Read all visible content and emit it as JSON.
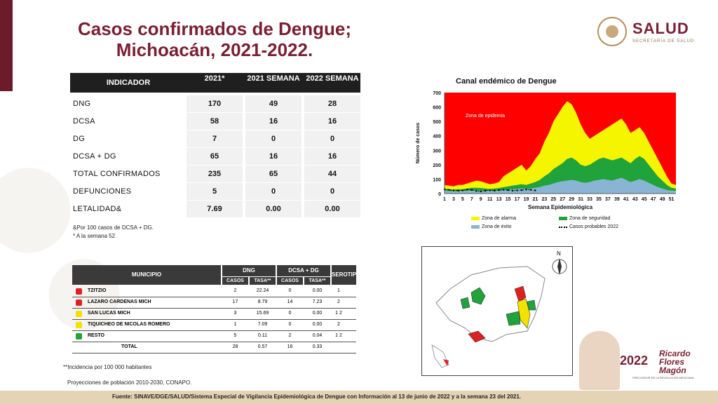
{
  "title": {
    "line1": "Casos confirmados de Dengue;",
    "line2": "Michoacán, 2021-2022."
  },
  "logo": {
    "name": "SALUD",
    "sub": "SECRETARÍA DE SALUD"
  },
  "indicator_table": {
    "headers": [
      "INDICADOR",
      "2021*",
      "2021 SEMANA",
      "2022 SEMANA"
    ],
    "rows": [
      {
        "label": "DNG",
        "v1": "170",
        "v2": "49",
        "v3": "28"
      },
      {
        "label": "DCSA",
        "v1": "58",
        "v2": "16",
        "v3": "16"
      },
      {
        "label": "DG",
        "v1": "7",
        "v2": "0",
        "v3": "0"
      },
      {
        "label": "DCSA + DG",
        "v1": "65",
        "v2": "16",
        "v3": "16"
      },
      {
        "label": "TOTAL CONFIRMADOS",
        "v1": "235",
        "v2": "65",
        "v3": "44"
      },
      {
        "label": "DEFUNCIONES",
        "v1": "5",
        "v2": "0",
        "v3": "0"
      },
      {
        "label": "LETALIDAD&",
        "v1": "7.69",
        "v2": "0.00",
        "v3": "0.00"
      }
    ],
    "notes": [
      "&Por 100 casos de DCSA + DG.",
      "* A la semana 52"
    ]
  },
  "municipio_table": {
    "headers": {
      "municipio": "MUNICIPIO",
      "dng": "DNG",
      "dcsa": "DCSA + DG",
      "serotipo": "SEROTIPO",
      "casos": "CASOS",
      "tasa": "TASA**"
    },
    "rows": [
      {
        "name": "TZITZIO",
        "color": "#e02020",
        "c1": "2",
        "t1": "22.24",
        "c2": "0",
        "t2": "0.00",
        "s": "1"
      },
      {
        "name": "LAZARO CARDENAS MICH",
        "color": "#e02020",
        "c1": "17",
        "t1": "8.79",
        "c2": "14",
        "t2": "7.23",
        "s": "2"
      },
      {
        "name": "SAN LUCAS MICH",
        "color": "#f2e200",
        "c1": "3",
        "t1": "15.69",
        "c2": "0",
        "t2": "0.00",
        "s": "1  2"
      },
      {
        "name": "TIQUICHEO DE NICOLAS ROMERO",
        "color": "#f2e200",
        "c1": "1",
        "t1": "7.09",
        "c2": "0",
        "t2": "0.00",
        "s": "2"
      },
      {
        "name": "RESTO",
        "color": "#1fa33a",
        "c1": "5",
        "t1": "0.11",
        "c2": "2",
        "t2": "0.04",
        "s": "1  2"
      },
      {
        "name": "TOTAL",
        "color": "",
        "c1": "28",
        "t1": "0.57",
        "c2": "16",
        "t2": "0.33",
        "s": ""
      }
    ]
  },
  "footnotes": {
    "incidencia": "**Incidencia por 100 000 habitantes",
    "proyecciones": "Proyecciones de población 2010-2030,  CONAPO.",
    "fuente": "Fuente: SINAVE/DGE/SALUD/Sistema Especial de Vigilancia Epidemiológica de Dengue con Información al 13 de junio de 2022 y a la semana 23 del 2021."
  },
  "chart_data": {
    "type": "area",
    "title": "Canal endémico de Dengue",
    "xlabel": "Semana Epidemiológica",
    "ylabel": "Número de casos",
    "ylim": [
      0,
      700
    ],
    "yticks": [
      0,
      100,
      200,
      300,
      400,
      500,
      600,
      700
    ],
    "xticks": [
      1,
      3,
      5,
      7,
      9,
      11,
      13,
      15,
      17,
      19,
      21,
      23,
      25,
      27,
      29,
      31,
      33,
      35,
      37,
      39,
      41,
      43,
      45,
      47,
      49,
      51
    ],
    "annotation": "Zona de epidemia",
    "x": [
      1,
      2,
      3,
      4,
      5,
      6,
      7,
      8,
      9,
      10,
      11,
      12,
      13,
      14,
      15,
      16,
      17,
      18,
      19,
      20,
      21,
      22,
      23,
      24,
      25,
      26,
      27,
      28,
      29,
      30,
      31,
      32,
      33,
      34,
      35,
      36,
      37,
      38,
      39,
      40,
      41,
      42,
      43,
      44,
      45,
      46,
      47,
      48,
      49,
      50,
      51,
      52
    ],
    "series": [
      {
        "name": "Zona de alarma",
        "color": "#f5f500",
        "values": [
          60,
          55,
          50,
          60,
          60,
          70,
          80,
          90,
          85,
          75,
          65,
          70,
          80,
          120,
          140,
          160,
          180,
          200,
          160,
          190,
          240,
          280,
          360,
          420,
          500,
          550,
          600,
          640,
          620,
          560,
          480,
          420,
          380,
          400,
          420,
          440,
          460,
          480,
          500,
          520,
          480,
          420,
          440,
          460,
          420,
          360,
          300,
          240,
          180,
          120,
          70,
          60
        ]
      },
      {
        "name": "Zona de seguridad",
        "color": "#1fa33a",
        "values": [
          35,
          30,
          28,
          30,
          30,
          35,
          40,
          40,
          38,
          35,
          32,
          35,
          38,
          45,
          50,
          55,
          60,
          65,
          60,
          70,
          80,
          95,
          120,
          140,
          170,
          190,
          210,
          240,
          250,
          230,
          200,
          190,
          200,
          220,
          240,
          250,
          240,
          230,
          240,
          250,
          230,
          210,
          240,
          260,
          240,
          200,
          160,
          120,
          90,
          60,
          40,
          35
        ]
      },
      {
        "name": "Zona de éxito",
        "color": "#8ab4d4",
        "values": [
          20,
          18,
          16,
          18,
          18,
          20,
          22,
          22,
          20,
          20,
          18,
          20,
          22,
          25,
          28,
          30,
          32,
          35,
          32,
          35,
          40,
          45,
          55,
          60,
          70,
          80,
          85,
          90,
          95,
          90,
          80,
          75,
          80,
          90,
          95,
          100,
          95,
          90,
          100,
          110,
          95,
          80,
          90,
          100,
          90,
          75,
          60,
          45,
          35,
          25,
          20,
          18
        ]
      },
      {
        "name": "Casos probables 2022",
        "color": "#000000",
        "values": [
          30,
          26,
          22,
          20,
          22,
          28,
          25,
          18,
          15,
          20,
          22,
          20,
          24,
          26,
          24,
          20,
          22,
          24,
          28,
          26,
          22,
          null,
          null,
          null,
          null,
          null,
          null,
          null,
          null,
          null,
          null,
          null,
          null,
          null,
          null,
          null,
          null,
          null,
          null,
          null,
          null,
          null,
          null,
          null,
          null,
          null,
          null,
          null,
          null,
          null,
          null,
          null
        ]
      }
    ],
    "background_zone": {
      "name": "Zona de epidemia",
      "color": "#ff0000"
    }
  },
  "map": {
    "north": "N"
  },
  "anniversary": {
    "year": "2022",
    "year_sub": "Año de",
    "name1": "Ricardo",
    "name2": "Flores",
    "name3": "Magón",
    "tag": "PRECURSOR DE LA REVOLUCIÓN MEXICANA"
  }
}
